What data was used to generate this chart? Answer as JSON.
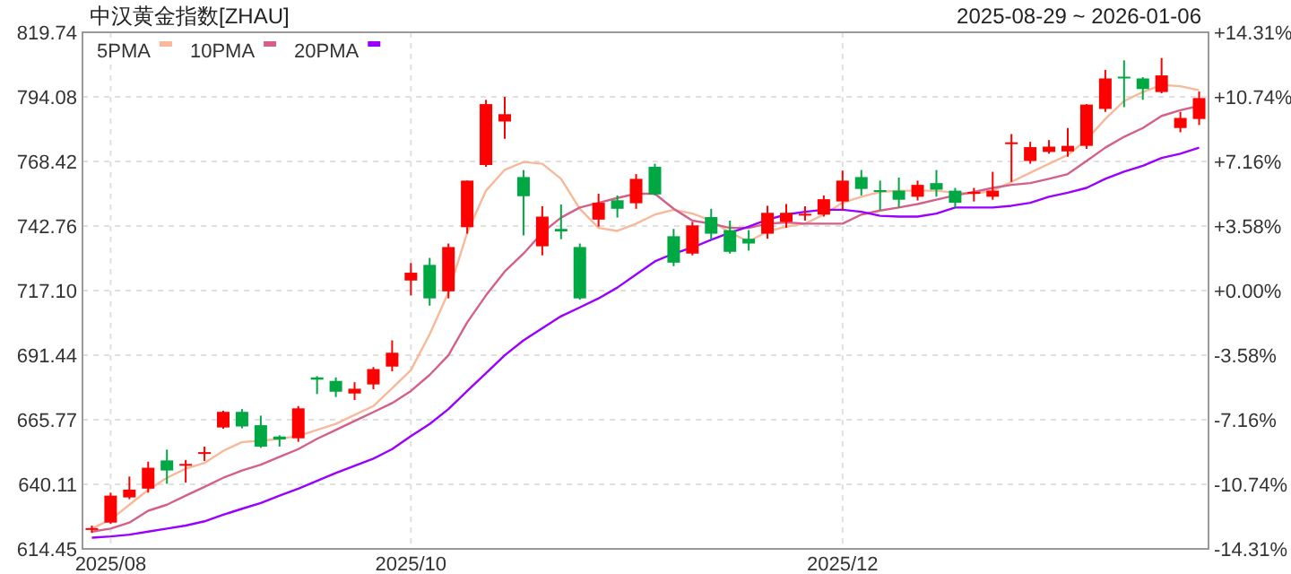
{
  "chart_data": {
    "type": "candlestick",
    "title": "中汉黄金指数[ZHAU]",
    "subtitle": "2025-08-29 ~ 2026-01-06",
    "categories": [
      null,
      "2025/08",
      null,
      null,
      null,
      null,
      null,
      null,
      null,
      null,
      null,
      null,
      null,
      null,
      null,
      null,
      null,
      "2025/10",
      null,
      null,
      null,
      null,
      null,
      null,
      null,
      null,
      null,
      null,
      null,
      null,
      null,
      null,
      null,
      null,
      null,
      null,
      null,
      null,
      null,
      null,
      "2025/12",
      null,
      null,
      null,
      null,
      null,
      null,
      null,
      null,
      null,
      null,
      null,
      null,
      null,
      null,
      null,
      null,
      null,
      null,
      null
    ],
    "ohlc": [
      [
        622.3,
        623.7,
        620.8,
        622.7
      ],
      [
        624.9,
        636.8,
        624.4,
        635.6
      ],
      [
        634.9,
        643.2,
        634.2,
        638.0
      ],
      [
        638.4,
        649.1,
        636.8,
        646.7
      ],
      [
        649.6,
        653.9,
        640.3,
        645.6
      ],
      [
        647.5,
        649.8,
        640.8,
        648.2
      ],
      [
        652.4,
        655.1,
        649.4,
        652.9
      ],
      [
        662.7,
        669.3,
        662.2,
        668.9
      ],
      [
        668.9,
        670.0,
        662.4,
        663.1
      ],
      [
        663.6,
        667.4,
        654.6,
        655.1
      ],
      [
        659.1,
        659.6,
        655.1,
        657.9
      ],
      [
        658.4,
        671.2,
        657.0,
        670.3
      ],
      [
        682.6,
        683.1,
        676.0,
        681.7
      ],
      [
        681.2,
        682.6,
        674.8,
        676.9
      ],
      [
        676.2,
        680.7,
        673.6,
        678.1
      ],
      [
        679.8,
        686.7,
        677.9,
        685.9
      ],
      [
        686.9,
        697.3,
        685.0,
        692.4
      ],
      [
        721.1,
        728.0,
        715.2,
        724.2
      ],
      [
        727.3,
        730.1,
        711.1,
        714.0
      ],
      [
        716.8,
        735.8,
        714.0,
        734.4
      ],
      [
        742.3,
        760.8,
        739.7,
        760.8
      ],
      [
        767.0,
        792.9,
        766.3,
        791.2
      ],
      [
        784.3,
        794.1,
        777.4,
        787.2
      ],
      [
        762.2,
        765.0,
        739.0,
        754.6
      ],
      [
        734.7,
        750.6,
        731.1,
        746.5
      ],
      [
        741.6,
        751.3,
        737.5,
        740.6
      ],
      [
        734.4,
        735.8,
        713.5,
        714.0
      ],
      [
        745.3,
        755.6,
        742.5,
        752.0
      ],
      [
        753.0,
        754.9,
        746.1,
        749.6
      ],
      [
        751.8,
        763.4,
        749.6,
        761.5
      ],
      [
        766.3,
        767.5,
        754.9,
        755.3
      ],
      [
        738.7,
        741.6,
        726.8,
        728.2
      ],
      [
        731.8,
        744.4,
        731.1,
        743.0
      ],
      [
        746.3,
        749.6,
        737.3,
        739.7
      ],
      [
        741.1,
        744.9,
        731.8,
        732.5
      ],
      [
        737.7,
        741.1,
        733.0,
        735.8
      ],
      [
        739.7,
        750.8,
        737.7,
        748.0
      ],
      [
        744.4,
        751.5,
        742.0,
        748.0
      ],
      [
        747.1,
        750.6,
        744.9,
        747.6
      ],
      [
        747.3,
        754.9,
        746.5,
        753.4
      ],
      [
        752.5,
        764.8,
        749.2,
        760.8
      ],
      [
        762.2,
        765.0,
        754.9,
        757.5
      ],
      [
        757.0,
        760.8,
        749.2,
        756.3
      ],
      [
        756.8,
        762.0,
        750.1,
        753.2
      ],
      [
        754.4,
        760.8,
        752.9,
        759.1
      ],
      [
        759.8,
        765.0,
        754.4,
        757.2
      ],
      [
        756.8,
        757.9,
        750.1,
        752.0
      ],
      [
        755.8,
        757.9,
        752.5,
        756.3
      ],
      [
        754.4,
        764.3,
        753.2,
        756.8
      ],
      [
        775.3,
        779.3,
        760.3,
        776.0
      ],
      [
        768.6,
        776.2,
        767.5,
        774.1
      ],
      [
        772.2,
        776.9,
        771.5,
        774.3
      ],
      [
        772.4,
        781.7,
        770.3,
        774.6
      ],
      [
        774.6,
        791.2,
        773.4,
        791.0
      ],
      [
        789.3,
        804.8,
        788.1,
        801.4
      ],
      [
        802.1,
        808.6,
        790.0,
        801.7
      ],
      [
        801.4,
        801.9,
        792.9,
        797.2
      ],
      [
        796.0,
        809.5,
        795.5,
        802.6
      ],
      [
        781.7,
        788.1,
        780.0,
        785.7
      ],
      [
        785.3,
        796.2,
        782.9,
        793.6
      ]
    ],
    "colors": [
      "#ff0000",
      "#ff0000",
      "#ff0000",
      "#ff0000",
      "#00a843",
      "#ff0000",
      "#ff0000",
      "#ff0000",
      "#00a843",
      "#00a843",
      "#00a843",
      "#ff0000",
      "#00a843",
      "#00a843",
      "#ff0000",
      "#ff0000",
      "#ff0000",
      "#ff0000",
      "#00a843",
      "#ff0000",
      "#ff0000",
      "#ff0000",
      "#ff0000",
      "#00a843",
      "#ff0000",
      "#00a843",
      "#00a843",
      "#ff0000",
      "#00a843",
      "#ff0000",
      "#00a843",
      "#00a843",
      "#ff0000",
      "#00a843",
      "#00a843",
      "#00a843",
      "#ff0000",
      "#ff0000",
      "#ff0000",
      "#ff0000",
      "#ff0000",
      "#00a843",
      "#00a843",
      "#00a843",
      "#ff0000",
      "#00a843",
      "#00a843",
      "#ff0000",
      "#ff0000",
      "#ff0000",
      "#ff0000",
      "#ff0000",
      "#ff0000",
      "#ff0000",
      "#ff0000",
      "#00a843",
      "#00a843",
      "#ff0000",
      "#ff0000",
      "#ff0000"
    ],
    "series": [
      {
        "type": "line",
        "name": "5PMA",
        "color": "#f7b99a",
        "values": [
          622.5,
          626.1,
          632.0,
          637.9,
          642.7,
          646.3,
          648.6,
          653.4,
          656.9,
          657.4,
          658.2,
          659.3,
          661.7,
          664.1,
          667.7,
          671.2,
          678.3,
          685.5,
          699.7,
          716.4,
          740.1,
          756.8,
          765.1,
          768.2,
          767.5,
          761.5,
          749.6,
          742.0,
          740.8,
          743.7,
          747.3,
          749.2,
          747.7,
          744.9,
          740.1,
          736.6,
          740.6,
          742.5,
          743.7,
          747.3,
          752.0,
          754.4,
          756.3,
          756.8,
          756.8,
          756.8,
          756.0,
          755.6,
          756.8,
          760.3,
          763.9,
          767.5,
          771.0,
          777.0,
          785.3,
          792.4,
          796.0,
          798.8,
          798.3,
          796.7
        ]
      },
      {
        "type": "line",
        "name": "10PMA",
        "color": "#d4608a",
        "values": [
          621.3,
          622.5,
          624.9,
          629.6,
          632.0,
          635.6,
          639.1,
          642.7,
          645.6,
          647.9,
          651.0,
          654.1,
          658.2,
          661.7,
          665.3,
          668.8,
          672.4,
          677.2,
          683.6,
          691.4,
          704.5,
          715.2,
          724.7,
          731.8,
          740.1,
          746.1,
          750.1,
          752.0,
          753.9,
          755.6,
          755.6,
          749.6,
          744.9,
          743.7,
          742.0,
          742.0,
          743.7,
          744.2,
          743.7,
          743.7,
          743.7,
          747.3,
          748.9,
          750.1,
          751.5,
          753.2,
          754.9,
          756.3,
          757.9,
          759.1,
          759.8,
          761.5,
          763.4,
          768.6,
          773.9,
          778.2,
          781.7,
          786.5,
          788.8,
          790.5
        ]
      },
      {
        "type": "line",
        "name": "20PMA",
        "color": "#9900ff",
        "values": [
          618.9,
          619.4,
          620.1,
          621.3,
          622.5,
          623.7,
          625.4,
          628.0,
          630.4,
          632.7,
          635.6,
          638.4,
          641.5,
          644.6,
          647.5,
          650.3,
          654.1,
          659.3,
          664.1,
          670.0,
          677.2,
          684.3,
          691.4,
          697.3,
          702.1,
          706.9,
          710.4,
          714.0,
          718.3,
          723.5,
          728.7,
          731.8,
          734.2,
          737.3,
          740.1,
          742.5,
          745.3,
          747.3,
          748.4,
          749.2,
          749.2,
          748.4,
          746.8,
          746.5,
          746.5,
          747.7,
          750.1,
          750.1,
          750.1,
          750.8,
          752.0,
          754.4,
          756.0,
          757.9,
          761.5,
          764.4,
          766.7,
          769.8,
          771.5,
          773.9
        ]
      }
    ],
    "ylim": [
      614.45,
      819.74
    ],
    "yticks": [
      614.45,
      640.11,
      665.77,
      691.44,
      {
        "value": 717.1,
        "label": "717.10"
      },
      742.76,
      768.42,
      794.08,
      819.74
    ],
    "y2lim": [
      -14.31,
      14.31
    ],
    "y2ticks": [
      {
        "value": -14.31,
        "label": "-14.31%"
      },
      {
        "value": -10.74,
        "label": "-10.74%"
      },
      {
        "value": -7.16,
        "label": "-7.16%"
      },
      {
        "value": -3.58,
        "label": "-3.58%"
      },
      {
        "value": 0,
        "label": "+0.00%"
      },
      {
        "value": 3.58,
        "label": "+3.58%"
      },
      {
        "value": 7.16,
        "label": "+7.16%"
      },
      {
        "value": 10.74,
        "label": "+10.74%"
      },
      {
        "value": 14.31,
        "label": "+14.31%"
      }
    ],
    "grid": true,
    "legend": "top left"
  }
}
